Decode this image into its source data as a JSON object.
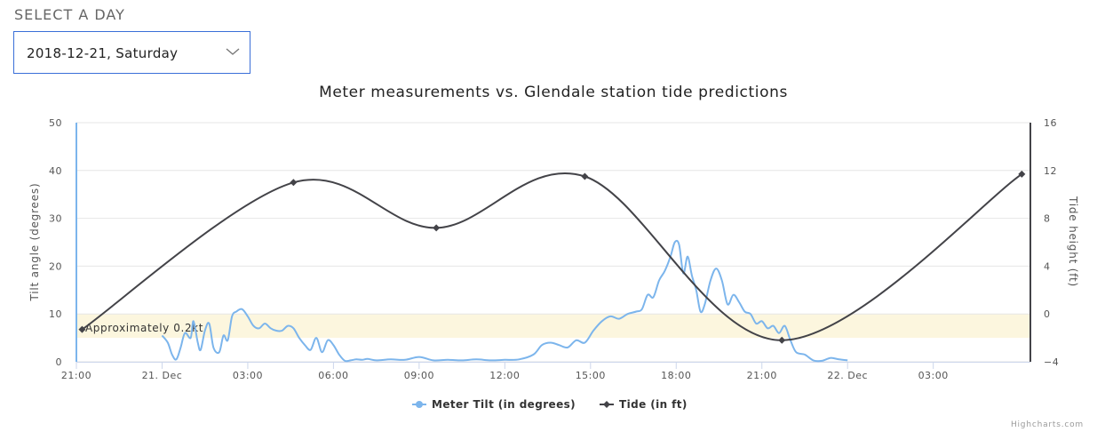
{
  "selector": {
    "label": "SELECT A DAY",
    "value": "2018-12-21, Saturday"
  },
  "chart_data": {
    "type": "line",
    "title": "Meter measurements vs. Glendale station tide predictions",
    "x_axis": {
      "range_hours": [
        -3,
        30.4
      ],
      "tick_values": [
        -3,
        0,
        3,
        6,
        9,
        12,
        15,
        18,
        21,
        24,
        27
      ],
      "tick_labels": [
        "21:00",
        "21. Dec",
        "03:00",
        "06:00",
        "09:00",
        "12:00",
        "15:00",
        "18:00",
        "21:00",
        "22. Dec",
        "03:00"
      ]
    },
    "y_axis_left": {
      "title": "Tilt angle (degrees)",
      "range": [
        0,
        50
      ],
      "tick_labels": [
        "0",
        "10",
        "20",
        "30",
        "40",
        "50"
      ]
    },
    "y_axis_right": {
      "title": "Tide height (ft)",
      "range": [
        -4,
        16
      ],
      "tick_labels": [
        "−4",
        "0",
        "4",
        "8",
        "12",
        "16"
      ]
    },
    "plot_band": {
      "label": "Approximately 0.2kt",
      "from": 5,
      "to": 10,
      "color": "#fcf6de"
    },
    "grid": true,
    "legend_position": "bottom-center",
    "series": [
      {
        "name": "Meter Tilt (in degrees)",
        "color": "#7cb5ec",
        "axis": "left",
        "x": [
          0.0,
          0.2,
          0.35,
          0.5,
          0.65,
          0.8,
          1.0,
          1.1,
          1.25,
          1.35,
          1.5,
          1.65,
          1.8,
          2.0,
          2.15,
          2.3,
          2.45,
          2.6,
          2.8,
          3.0,
          3.2,
          3.4,
          3.6,
          3.8,
          4.0,
          4.2,
          4.4,
          4.6,
          4.8,
          5.0,
          5.2,
          5.4,
          5.6,
          5.8,
          6.0,
          6.2,
          6.4,
          6.6,
          6.8,
          7.0,
          7.2,
          7.5,
          8.0,
          8.5,
          9.0,
          9.5,
          10.0,
          10.5,
          11.0,
          11.5,
          12.0,
          12.5,
          13.0,
          13.3,
          13.6,
          13.9,
          14.2,
          14.5,
          14.8,
          15.1,
          15.4,
          15.7,
          16.0,
          16.3,
          16.6,
          16.8,
          17.0,
          17.2,
          17.4,
          17.6,
          17.8,
          17.95,
          18.1,
          18.25,
          18.4,
          18.55,
          18.7,
          18.85,
          19.0,
          19.2,
          19.4,
          19.6,
          19.8,
          20.0,
          20.2,
          20.4,
          20.6,
          20.8,
          21.0,
          21.2,
          21.4,
          21.6,
          21.8,
          22.0,
          22.2,
          22.5,
          22.8,
          23.1,
          23.4,
          23.7,
          24.0
        ],
        "y": [
          5.5,
          4.0,
          1.5,
          0.5,
          3.0,
          6.0,
          5.0,
          8.5,
          4.0,
          2.5,
          6.5,
          8.0,
          3.0,
          2.0,
          5.5,
          4.5,
          9.5,
          10.5,
          11.0,
          9.5,
          7.5,
          7.0,
          8.0,
          7.0,
          6.5,
          6.5,
          7.5,
          7.0,
          5.0,
          3.5,
          2.5,
          5.0,
          2.0,
          4.5,
          3.5,
          1.5,
          0.2,
          0.3,
          0.5,
          0.4,
          0.6,
          0.3,
          0.5,
          0.4,
          1.0,
          0.3,
          0.4,
          0.3,
          0.5,
          0.3,
          0.4,
          0.5,
          1.5,
          3.5,
          4.0,
          3.5,
          3.0,
          4.5,
          4.0,
          6.5,
          8.5,
          9.5,
          9.0,
          10.0,
          10.5,
          11.0,
          14.0,
          13.5,
          17.0,
          19.0,
          22.0,
          25.0,
          24.5,
          18.5,
          22.0,
          18.0,
          15.0,
          10.5,
          12.0,
          17.0,
          19.5,
          17.0,
          12.0,
          14.0,
          12.5,
          10.5,
          10.0,
          8.0,
          8.5,
          7.0,
          7.5,
          6.0,
          7.5,
          4.5,
          2.0,
          1.5,
          0.3,
          0.2,
          0.8,
          0.5,
          0.3
        ]
      },
      {
        "name": "Tide (in ft)",
        "color": "#434348",
        "axis": "right",
        "x": [
          -2.8,
          4.6,
          9.6,
          14.8,
          21.7,
          30.1
        ],
        "y": [
          -1.3,
          11.0,
          7.2,
          11.5,
          -2.2,
          11.7
        ]
      }
    ]
  },
  "credits": "Highcharts.com"
}
